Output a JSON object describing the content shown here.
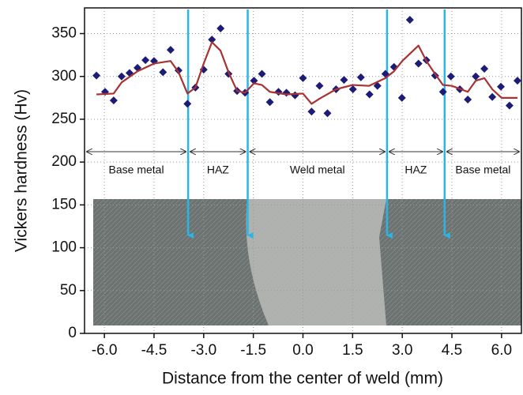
{
  "chart_data": {
    "type": "scatter",
    "xlabel": "Distance from the center of weld (mm)",
    "ylabel": "Vickers hardness (Hv)",
    "xlim": [
      -6.6,
      6.6
    ],
    "ylim": [
      0,
      380
    ],
    "xticks": [
      {
        "value": -6,
        "label": "-6.0"
      },
      -4.5,
      {
        "value": -3,
        "label": "-3.0"
      },
      -1.5,
      {
        "value": 0,
        "label": "0.0"
      },
      1.5,
      {
        "value": 3,
        "label": "3.0"
      },
      4.5,
      {
        "value": 6,
        "label": "6.0"
      }
    ],
    "yticks": [
      0,
      50,
      100,
      150,
      200,
      250,
      300,
      350
    ],
    "grid": true,
    "series": [
      {
        "type": "scatter",
        "color": "#1c1c78",
        "x": [
          -6.24,
          -5.98,
          -5.72,
          -5.48,
          -5.24,
          -5.0,
          -4.76,
          -4.5,
          -4.23,
          -4.0,
          -3.76,
          -3.49,
          -3.25,
          -3.0,
          -2.75,
          -2.49,
          -2.25,
          -1.99,
          -1.75,
          -1.48,
          -1.24,
          -1.0,
          -0.74,
          -0.5,
          -0.24,
          0.0,
          0.26,
          0.5,
          0.74,
          1.0,
          1.24,
          1.51,
          1.75,
          2.01,
          2.25,
          2.49,
          2.75,
          2.99,
          3.23,
          3.49,
          3.73,
          3.99,
          4.23,
          4.47,
          4.74,
          4.98,
          5.22,
          5.48,
          5.72,
          5.98,
          6.24,
          6.48
        ],
        "values": [
          301,
          282,
          272,
          300,
          304,
          310,
          319,
          318,
          305,
          331,
          307,
          268,
          287,
          308,
          343,
          356,
          303,
          283,
          281,
          295,
          303,
          270,
          282,
          281,
          278,
          298,
          259,
          289,
          257,
          285,
          296,
          285,
          299,
          279,
          289,
          303,
          311,
          275,
          366,
          315,
          319,
          301,
          282,
          300,
          285,
          273,
          300,
          309,
          276,
          288,
          266,
          295
        ]
      },
      {
        "type": "line",
        "color": "#a83232",
        "x": [
          -6.24,
          -5.72,
          -5.48,
          -5.0,
          -4.5,
          -4.0,
          -3.76,
          -3.49,
          -3.25,
          -3.0,
          -2.75,
          -2.49,
          -2.25,
          -1.99,
          -1.75,
          -1.48,
          -1.24,
          -1.0,
          -0.5,
          0.0,
          0.26,
          0.5,
          1.0,
          1.5,
          2.0,
          2.49,
          2.75,
          3.0,
          3.49,
          3.73,
          3.99,
          4.23,
          4.5,
          4.98,
          5.22,
          5.48,
          5.72,
          6.0,
          6.48
        ],
        "values": [
          279,
          280,
          293,
          306,
          315,
          318,
          305,
          280,
          287,
          315,
          340,
          330,
          305,
          283,
          281,
          292,
          290,
          282,
          279,
          280,
          268,
          274,
          285,
          290,
          289,
          298,
          306,
          318,
          336,
          318,
          303,
          290,
          289,
          282,
          295,
          298,
          285,
          275,
          275
        ]
      }
    ],
    "boundaries": [
      -3.47,
      -1.67,
      2.54,
      4.28
    ],
    "boundary_color": "#29b6e6",
    "regions": [
      "Base metal",
      "HAZ",
      "Weld metal",
      "HAZ",
      "Base metal"
    ]
  }
}
